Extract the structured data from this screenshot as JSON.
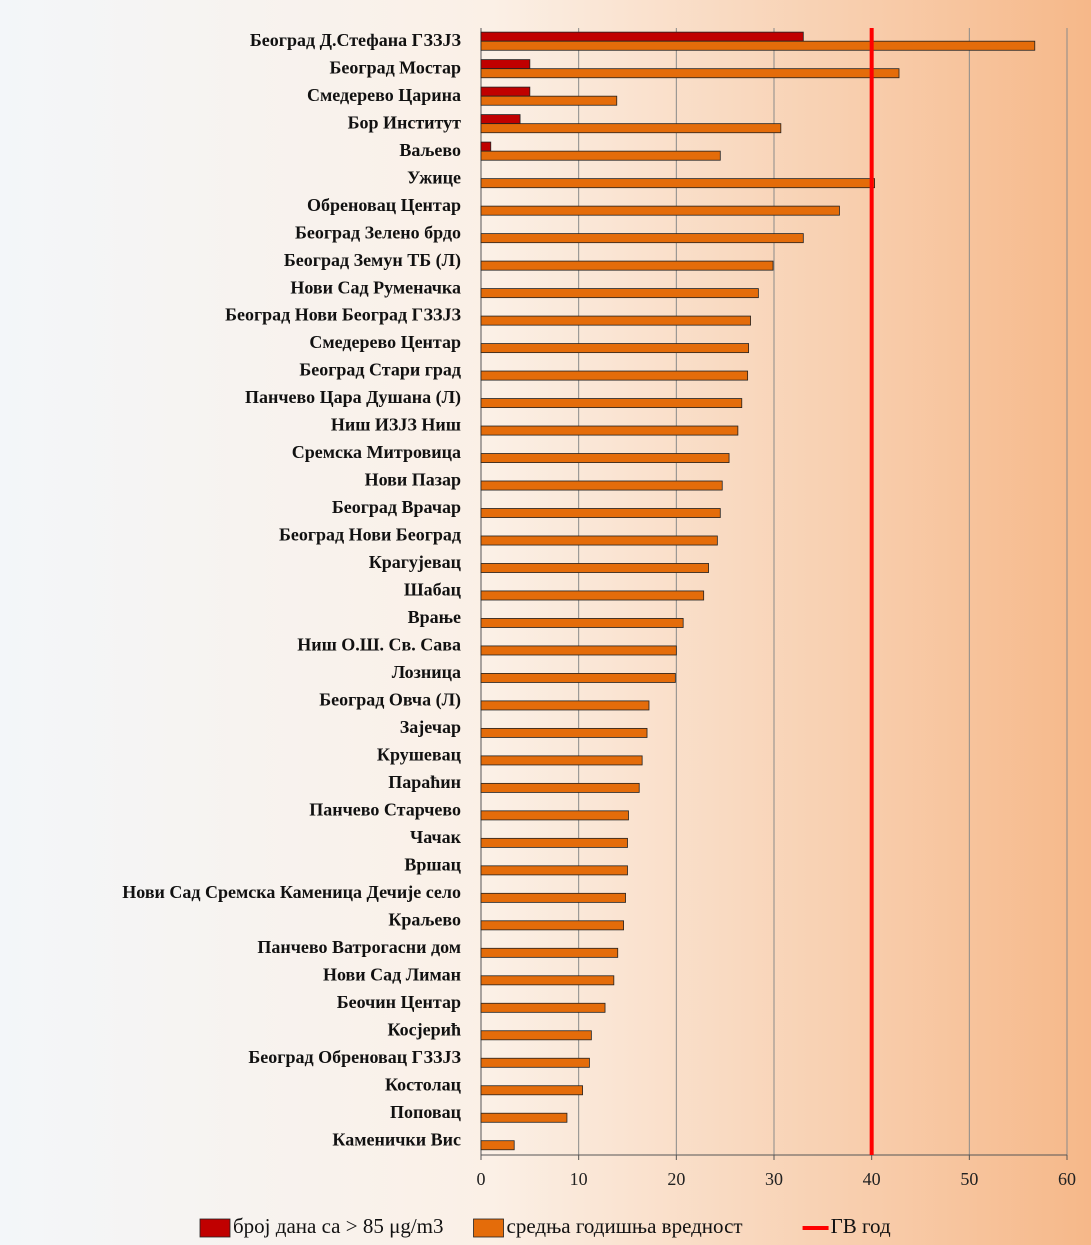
{
  "chart_data": {
    "type": "bar",
    "orientation": "horizontal",
    "categories": [
      "Београд  Д.Стефана ГЗЗЈЗ",
      "Београд Мостар",
      "Смедерево Царина",
      "Бор Институт",
      "Ваљево",
      "Ужице",
      "Обреновац Центар",
      "Београд Зелено брдо",
      "Београд Земун ТБ (Л)",
      "Нови Сад Руменачка",
      "Београд Нови Београд ГЗЗЈЗ",
      "Смедерево Центар",
      "Београд Стари град",
      "Панчево Цара Душана (Л)",
      "Ниш ИЗЈЗ Ниш",
      "Сремска Митровица",
      "Нови Пазар",
      "Београд Врачар",
      "Београд Нови Београд",
      "Крагујевац",
      "Шабац",
      "Врање",
      "Ниш О.Ш. Св. Сава",
      "Лозница",
      "Београд Овча (Л)",
      "Зајечар",
      "Крушевац",
      "Параћин",
      "Панчево Старчево",
      "Чачак",
      "Вршац",
      "Нови Сад Сремска Каменица Дечије село",
      "Краљево",
      "Панчево Ватрогасни дом",
      "Нови Сад Лиман",
      "Беочин Центар",
      "Косјерић",
      "Београд  Обреновац ГЗЗЈЗ",
      "Костолац",
      "Поповац",
      "Каменички Вис"
    ],
    "series": [
      {
        "name": "број дана са  > 85 μg/m3",
        "color": "#c00000",
        "values": [
          33,
          5,
          5,
          4,
          1,
          null,
          null,
          null,
          null,
          null,
          null,
          null,
          null,
          null,
          null,
          null,
          null,
          null,
          null,
          null,
          null,
          null,
          null,
          null,
          null,
          null,
          null,
          null,
          null,
          null,
          null,
          null,
          null,
          null,
          null,
          null,
          null,
          null,
          null,
          null,
          null
        ]
      },
      {
        "name": "средња годишња вредност",
        "color": "#e46c0a",
        "values": [
          56.7,
          42.8,
          13.9,
          30.7,
          24.5,
          40.3,
          36.7,
          33.0,
          29.9,
          28.4,
          27.6,
          27.4,
          27.3,
          26.7,
          26.3,
          25.4,
          24.7,
          24.5,
          24.2,
          23.3,
          22.8,
          20.7,
          20.0,
          19.9,
          17.2,
          17.0,
          16.5,
          16.2,
          15.1,
          15.0,
          15.0,
          14.8,
          14.6,
          14.0,
          13.6,
          12.7,
          11.3,
          11.1,
          10.4,
          8.8,
          3.4
        ]
      }
    ],
    "reference_line": {
      "name": "ГВ год",
      "value": 40,
      "color": "#ff0000"
    },
    "xlim": [
      0,
      60
    ],
    "xticks": [
      0,
      10,
      20,
      30,
      40,
      50,
      60
    ],
    "grid": true,
    "legend": "bottom"
  }
}
